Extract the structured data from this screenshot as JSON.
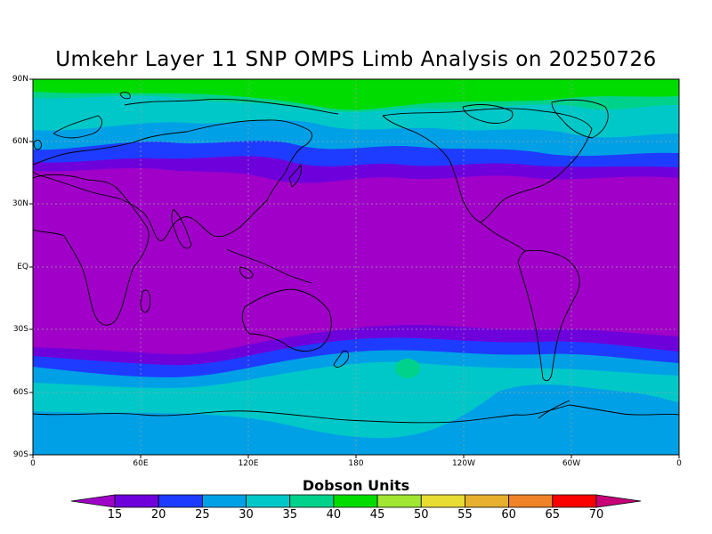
{
  "title": "Umkehr Layer 11 SNP OMPS Limb Analysis on 20250726",
  "lat_labels": [
    "90N",
    "60N",
    "30N",
    "EQ",
    "30S",
    "60S",
    "90S"
  ],
  "lon_labels": [
    "0",
    "60E",
    "120E",
    "180",
    "120W",
    "60W",
    "0"
  ],
  "colorbar": {
    "title": "Dobson Units",
    "ticks": [
      "15",
      "20",
      "25",
      "30",
      "35",
      "40",
      "45",
      "50",
      "55",
      "60",
      "65",
      "70"
    ],
    "colors": [
      "#a000c8",
      "#6e00dc",
      "#1e3cff",
      "#00a0e6",
      "#00c8c8",
      "#00d28c",
      "#00dc00",
      "#a0e632",
      "#e6dc32",
      "#e6af2d",
      "#f08228",
      "#fa0000",
      "#c80078",
      "#a000c8"
    ]
  },
  "chart_data": {
    "type": "heatmap",
    "title": "Umkehr Layer 11 SNP OMPS Limb Analysis on 20250726",
    "xlabel": "",
    "ylabel": "",
    "units": "Dobson Units",
    "x_range": [
      0,
      360
    ],
    "y_range": [
      -90,
      90
    ],
    "grid": true
  }
}
